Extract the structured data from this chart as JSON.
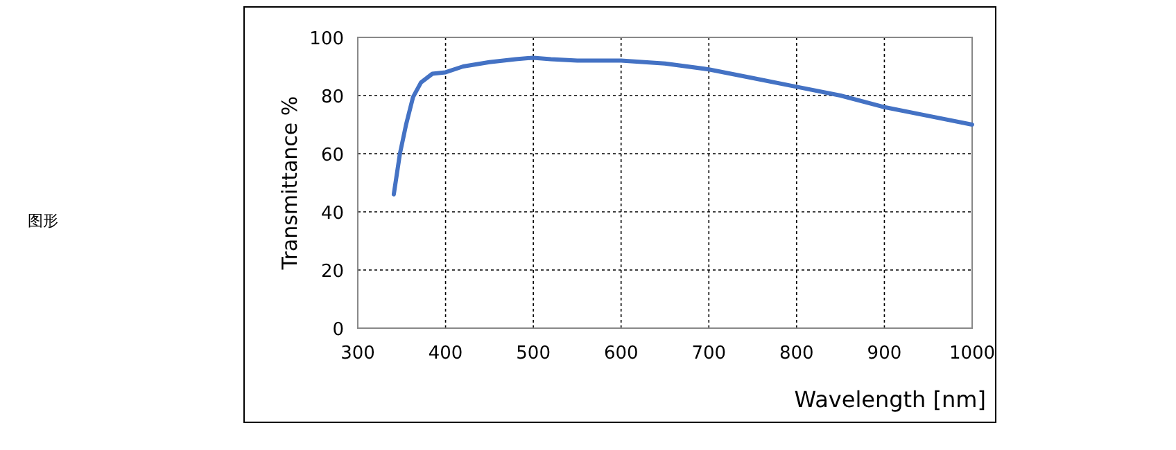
{
  "chart_data": {
    "type": "line",
    "xlabel": "Wavelength [nm]",
    "ylabel": "Transmittance %",
    "annotations": [
      "图形"
    ],
    "x": [
      341,
      348,
      355,
      363,
      372,
      385,
      400,
      420,
      450,
      480,
      500,
      520,
      550,
      580,
      600,
      650,
      700,
      750,
      800,
      850,
      900,
      950,
      1000
    ],
    "series": [
      {
        "color": "#4472c4",
        "values": [
          46,
          60,
          70,
          79.5,
          84.5,
          87.5,
          88,
          90,
          91.5,
          92.5,
          93,
          92.5,
          92,
          92,
          92,
          91,
          89,
          86,
          83,
          80,
          76,
          73,
          70
        ]
      }
    ],
    "xlim": [
      300,
      1000
    ],
    "ylim": [
      0,
      100
    ],
    "xticks": [
      300,
      400,
      500,
      600,
      700,
      800,
      900,
      1000
    ],
    "yticks": [
      0,
      20,
      40,
      60,
      80,
      100
    ],
    "grid": true,
    "line_style": "solid"
  }
}
